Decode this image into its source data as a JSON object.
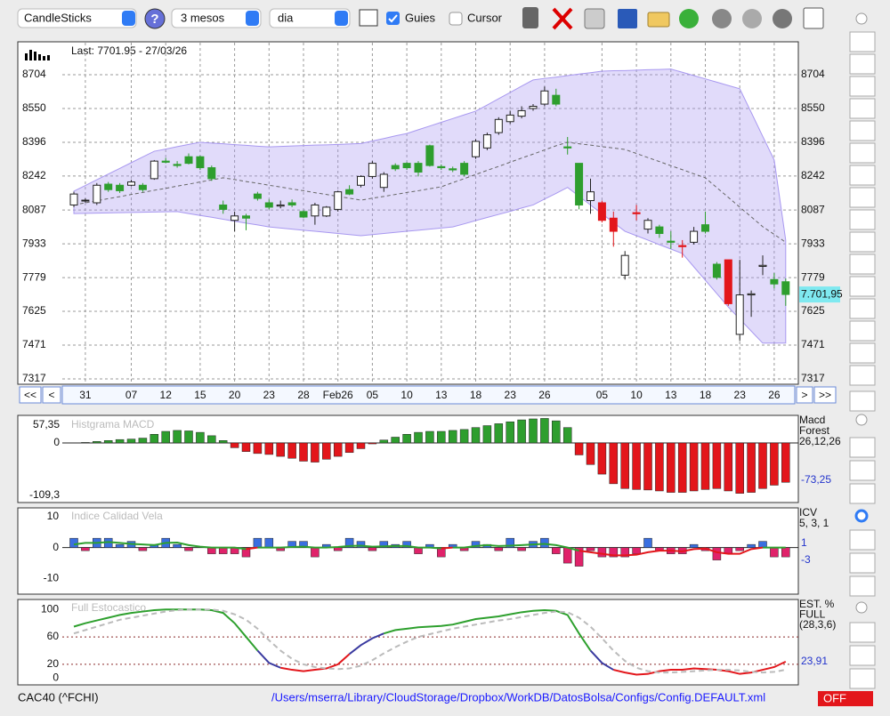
{
  "toolbar": {
    "chart_type": "CandleSticks",
    "period": "3 mesos",
    "interval": "dia",
    "guides": {
      "label": "Guies",
      "checked": true
    },
    "cursor": {
      "label": "Cursor",
      "checked": false
    }
  },
  "chart_data": [
    {
      "type": "candlestick",
      "annotation": "Last: 7701.95 - 27/03/26",
      "categories": [
        null,
        "31",
        null,
        null,
        null,
        "07",
        null,
        null,
        "12",
        null,
        null,
        "15",
        null,
        null,
        "20",
        null,
        null,
        "23",
        null,
        null,
        "28",
        null,
        null,
        "Feb26",
        null,
        null,
        "05",
        null,
        null,
        "10",
        null,
        null,
        "13",
        null,
        null,
        "18",
        null,
        null,
        "23",
        null,
        null,
        "26",
        null,
        null,
        null,
        null,
        "05",
        null,
        null,
        "10",
        null,
        null,
        "13",
        null,
        null,
        "18",
        null,
        null,
        "23",
        null,
        null,
        "26",
        null
      ],
      "open": [
        8110,
        8130,
        8120,
        8205,
        8200,
        8200,
        8200,
        8230,
        8310,
        8295,
        8330,
        8330,
        8280,
        8110,
        8040,
        8060,
        8160,
        8120,
        8105,
        8120,
        8080,
        8060,
        8060,
        8090,
        8180,
        8200,
        8240,
        8190,
        8290,
        8300,
        8300,
        8380,
        8285,
        8275,
        8300,
        8330,
        8370,
        8440,
        8490,
        8515,
        8550,
        8570,
        8610,
        8375,
        8300,
        8130,
        8120,
        8050,
        7790,
        8075,
        8000,
        8010,
        7945,
        7925,
        7940,
        8020,
        7840,
        7860,
        7520,
        7700,
        7830,
        7770,
        7760
      ],
      "high": [
        8170,
        8140,
        8210,
        8215,
        8210,
        8225,
        8210,
        8315,
        8325,
        8310,
        8345,
        8335,
        8290,
        8130,
        8080,
        8070,
        8170,
        8135,
        8130,
        8135,
        8085,
        8120,
        8105,
        8175,
        8200,
        8245,
        8310,
        8260,
        8300,
        8305,
        8310,
        8385,
        8295,
        8285,
        8310,
        8410,
        8440,
        8510,
        8540,
        8560,
        8570,
        8650,
        8640,
        8420,
        8300,
        8230,
        8130,
        8080,
        7900,
        8110,
        8050,
        8020,
        7990,
        7950,
        8010,
        8080,
        7850,
        7860,
        7860,
        7720,
        7880,
        7800,
        7775
      ],
      "low": [
        8100,
        8120,
        8110,
        8170,
        8165,
        8195,
        8170,
        8225,
        8300,
        8280,
        8295,
        8270,
        8220,
        8070,
        7990,
        7995,
        8130,
        8090,
        8095,
        8100,
        8050,
        8020,
        8055,
        8080,
        8155,
        8190,
        8230,
        8170,
        8265,
        8270,
        8240,
        8285,
        8270,
        8260,
        8240,
        8320,
        8360,
        8430,
        8480,
        8505,
        8540,
        8560,
        8560,
        8340,
        8090,
        8070,
        8030,
        7920,
        7770,
        8040,
        7980,
        7960,
        7910,
        7870,
        7930,
        7980,
        7770,
        7650,
        7490,
        7600,
        7790,
        7730,
        7650
      ],
      "close": [
        8160,
        8132,
        8200,
        8180,
        8175,
        8215,
        8180,
        8310,
        8305,
        8290,
        8300,
        8280,
        8230,
        8090,
        8060,
        8050,
        8140,
        8100,
        8110,
        8110,
        8055,
        8110,
        8100,
        8170,
        8160,
        8240,
        8300,
        8250,
        8275,
        8280,
        8260,
        8290,
        8280,
        8270,
        8250,
        8400,
        8430,
        8500,
        8520,
        8540,
        8560,
        8630,
        8570,
        8370,
        8110,
        8170,
        8040,
        7990,
        7880,
        8070,
        8040,
        7980,
        7940,
        7920,
        7990,
        7990,
        7780,
        7660,
        7700,
        7705,
        7835,
        7750,
        7701.95
      ],
      "colors": [
        "#ffffff",
        "#ffffff",
        "#ffffff",
        "#2e9e2e",
        "#2e9e2e",
        "#ffffff",
        "#2e9e2e",
        "#ffffff",
        "#2e9e2e",
        "#2e9e2e",
        "#2e9e2e",
        "#2e9e2e",
        "#2e9e2e",
        "#2e9e2e",
        "#ffffff",
        "#2e9e2e",
        "#2e9e2e",
        "#2e9e2e",
        "#ffffff",
        "#2e9e2e",
        "#2e9e2e",
        "#ffffff",
        "#ffffff",
        "#ffffff",
        "#2e9e2e",
        "#ffffff",
        "#ffffff",
        "#ffffff",
        "#2e9e2e",
        "#2e9e2e",
        "#2e9e2e",
        "#2e9e2e",
        "#2e9e2e",
        "#2e9e2e",
        "#2e9e2e",
        "#ffffff",
        "#ffffff",
        "#ffffff",
        "#ffffff",
        "#ffffff",
        "#ffffff",
        "#ffffff",
        "#2e9e2e",
        "#2e9e2e",
        "#2e9e2e",
        "#ffffff",
        "#e3161b",
        "#e3161b",
        "#ffffff",
        "#e3161b",
        "#ffffff",
        "#2e9e2e",
        "#2e9e2e",
        "#e3161b",
        "#ffffff",
        "#2e9e2e",
        "#2e9e2e",
        "#e3161b",
        "#ffffff",
        "#ffffff",
        "#ffffff",
        "#2e9e2e",
        "#2e9e2e"
      ],
      "bands": {
        "color": "#a898f0",
        "upper": [
          8173,
          8199,
          8225,
          8251,
          8277,
          8303,
          8329,
          8355,
          8365,
          8376,
          8386,
          8396,
          8392,
          8389,
          8385,
          8382,
          8378,
          8375,
          8377,
          8379,
          8381,
          8383,
          8384,
          8386,
          8388,
          8390,
          8402,
          8413,
          8425,
          8436,
          8453,
          8470,
          8487,
          8504,
          8521,
          8538,
          8566,
          8595,
          8623,
          8652,
          8680,
          8687,
          8693,
          8700,
          8707,
          8713,
          8720,
          8722,
          8723,
          8725,
          8727,
          8728,
          8730,
          8715,
          8700,
          8685,
          8670,
          8655,
          8640,
          8532,
          8423,
          8315,
          7950
        ],
        "lower": [
          8071,
          8072,
          8073,
          8074,
          8075,
          8076,
          8077,
          8078,
          8079,
          8080,
          8071,
          8062,
          8054,
          8045,
          8036,
          8027,
          8019,
          8010,
          8005,
          8000,
          7995,
          7990,
          7985,
          7980,
          7975,
          7970,
          7975,
          7980,
          7985,
          7990,
          7995,
          8000,
          8005,
          8010,
          8024,
          8039,
          8053,
          8067,
          8081,
          8096,
          8110,
          8137,
          8163,
          8190,
          8150,
          8110,
          8070,
          8030,
          7990,
          7970,
          7950,
          7929,
          7909,
          7889,
          7828,
          7767,
          7706,
          7645,
          7590,
          7535,
          7480,
          7480,
          7480
        ],
        "middle": [
          8110,
          8120,
          8129,
          8139,
          8148,
          8158,
          8167,
          8177,
          8186,
          8196,
          8205,
          8215,
          8224,
          8234,
          8226,
          8217,
          8209,
          8200,
          8192,
          8183,
          8175,
          8166,
          8158,
          8149,
          8141,
          8132,
          8141,
          8149,
          8158,
          8167,
          8175,
          8184,
          8193,
          8212,
          8230,
          8249,
          8268,
          8286,
          8305,
          8324,
          8342,
          8361,
          8380,
          8396,
          8389,
          8383,
          8376,
          8370,
          8363,
          8345,
          8326,
          8308,
          8289,
          8271,
          8252,
          8234,
          8189,
          8145,
          8100,
          8056,
          8011,
          7976,
          7940
        ]
      },
      "ylim": [
        7317,
        8850
      ],
      "yticks": [
        7317,
        7471,
        7625,
        7779,
        7933,
        8087,
        8242,
        8396,
        8550,
        8704
      ],
      "grid": true,
      "price_tag": {
        "value": 7701.95,
        "label": "7.701,95"
      },
      "nav": [
        "<<",
        "<",
        ">",
        ">>"
      ]
    },
    {
      "type": "histogram",
      "title": "Histgrama MACD",
      "legend": [
        "Macd",
        "Forest",
        "26,12,26"
      ],
      "current_label": "-73,25",
      "values": [
        0,
        1,
        3,
        5,
        7,
        8,
        10,
        18,
        24,
        26,
        25,
        22,
        15,
        5,
        -10,
        -18,
        -22,
        -24,
        -28,
        -32,
        -38,
        -40,
        -34,
        -28,
        -20,
        -12,
        -2,
        6,
        12,
        18,
        22,
        24,
        24,
        26,
        28,
        32,
        36,
        40,
        44,
        48,
        50,
        51,
        46,
        32,
        -25,
        -45,
        -65,
        -85,
        -95,
        -97,
        -98,
        -100,
        -103,
        -103,
        -100,
        -97,
        -95,
        -100,
        -105,
        -103,
        -95,
        -88,
        -82
      ],
      "colors": {
        "positive": "#2e9e2e",
        "negative": "#e3161b"
      },
      "ylim": [
        -109.3,
        57.35
      ],
      "yticks": [
        {
          "value": 57.35,
          "label": "57,35"
        },
        0,
        {
          "value": -109.3,
          "label": "-109,3"
        }
      ]
    },
    {
      "type": "bar_line",
      "title": "Indice Calidad Vela",
      "legend": [
        "ICV",
        "5, 3, 1"
      ],
      "current_labels": [
        "1",
        "-3"
      ],
      "values": [
        3,
        -1,
        3,
        3,
        1,
        2,
        -1,
        1,
        3,
        1,
        -1,
        0,
        -2,
        -2,
        -2,
        -3,
        3,
        3,
        -1,
        2,
        2,
        -3,
        1,
        -1,
        3,
        2,
        -1,
        2,
        1,
        2,
        -2,
        1,
        -3,
        1,
        -1,
        2,
        1,
        -1,
        3,
        -1,
        2,
        3,
        -2,
        -5,
        -6,
        -1,
        -3,
        -3,
        -3,
        -2,
        3,
        -1,
        -2,
        -2,
        1,
        -1,
        -4,
        -2,
        -1,
        1,
        2,
        -3,
        -3
      ],
      "line": [
        1,
        1.5,
        1.5,
        1.8,
        1.5,
        1.2,
        1,
        0.8,
        1.5,
        1.6,
        0.8,
        0.3,
        0,
        0,
        0,
        -0.5,
        0,
        0,
        0,
        0.2,
        0.3,
        0,
        0,
        0.2,
        0.5,
        0.6,
        0.3,
        0.4,
        0.5,
        0.5,
        0,
        0,
        -0.3,
        0,
        0,
        0.5,
        0.8,
        0.5,
        0.6,
        0.8,
        1,
        1.2,
        0.8,
        0,
        -1,
        -1.5,
        -2,
        -2.5,
        -2.5,
        -2.3,
        -1.5,
        -1,
        -1,
        -1.2,
        -0.5,
        -0.3,
        -1.5,
        -2,
        -2,
        -0.5,
        0,
        0,
        0
      ],
      "colors": {
        "positive": "#3a6fe0",
        "negative": "#e0226a",
        "line_positive": "#2ea02e",
        "line_negative": "#e3161b"
      },
      "ylim": [
        -15,
        12.5
      ],
      "yticks": [
        10,
        0,
        -10
      ]
    },
    {
      "type": "line",
      "title": "Full Estocastico",
      "legend": [
        "EST. %",
        "FULL",
        "(28,3,6)"
      ],
      "current_label": "23,91",
      "series": [
        {
          "values": [
            75,
            80,
            84,
            88,
            92,
            95,
            97,
            99,
            100,
            100,
            100,
            100,
            99,
            95,
            80,
            60,
            40,
            22,
            15,
            12,
            10,
            12,
            14,
            20,
            35,
            48,
            58,
            65,
            70,
            72,
            74,
            75,
            76,
            78,
            82,
            86,
            88,
            90,
            93,
            96,
            98,
            99,
            98,
            92,
            65,
            40,
            22,
            12,
            8,
            5,
            6,
            10,
            12,
            12,
            14,
            13,
            12,
            10,
            6,
            8,
            12,
            16,
            23.91
          ],
          "colors": {
            "high": "#2ea02e",
            "mid": "#3a3aa0",
            "low": "#e3161b"
          }
        },
        {
          "values": [
            65,
            70,
            75,
            80,
            85,
            88,
            91,
            94,
            97,
            99,
            100,
            100,
            100,
            98,
            93,
            85,
            72,
            55,
            40,
            28,
            20,
            16,
            14,
            13,
            14,
            18,
            26,
            36,
            45,
            53,
            60,
            64,
            68,
            72,
            75,
            78,
            81,
            84,
            86,
            89,
            92,
            95,
            97,
            96,
            88,
            75,
            58,
            40,
            25,
            15,
            10,
            8,
            8,
            9,
            10,
            11,
            12,
            12,
            11,
            9,
            8,
            9,
            12
          ],
          "color": "#bbbbbb",
          "dashed": true
        }
      ],
      "ylim": [
        -10,
        112
      ],
      "yticks": [
        100,
        60,
        20,
        0
      ]
    }
  ],
  "status": {
    "symbol": "CAC40 (^FCHI)",
    "path": "/Users/mserra/Library/CloudStorage/Dropbox/WorkDB/DatosBolsa/Configs/Config.DEFAULT.xml",
    "button": "OFF"
  }
}
